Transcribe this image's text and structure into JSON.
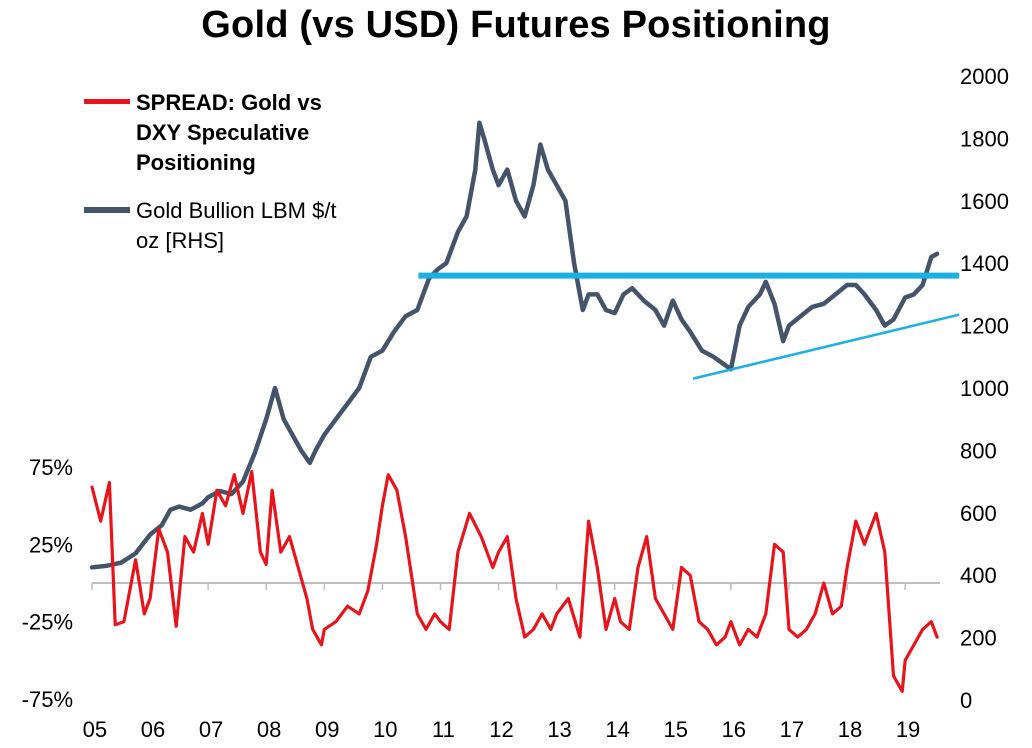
{
  "chart_data": {
    "type": "line",
    "title": "Gold (vs USD) Futures Positioning",
    "x_tick_labels": [
      "05",
      "06",
      "07",
      "08",
      "09",
      "10",
      "11",
      "12",
      "13",
      "14",
      "15",
      "16",
      "17",
      "18",
      "19"
    ],
    "left_axis": {
      "ticks": [
        75,
        25,
        -25,
        -75
      ],
      "tick_labels": [
        "75%",
        "25%",
        "-25%",
        "-75%"
      ],
      "ylim": [
        -75,
        75
      ]
    },
    "right_axis": {
      "ticks": [
        0,
        200,
        400,
        600,
        800,
        1000,
        1200,
        1400,
        1600,
        1800,
        2000
      ],
      "tick_labels": [
        "0",
        "200",
        "400",
        "600",
        "800",
        "1000",
        "1200",
        "1400",
        "1600",
        "1800",
        "2000"
      ],
      "ylim": [
        0,
        2000
      ]
    },
    "series": [
      {
        "name": "SPREAD: Gold vs DXY Speculative Positioning",
        "axis": "left",
        "color": "#e8141b",
        "x": [
          2005.0,
          2005.15,
          2005.3,
          2005.4,
          2005.55,
          2005.75,
          2005.9,
          2006.0,
          2006.15,
          2006.3,
          2006.45,
          2006.6,
          2006.75,
          2006.9,
          2007.0,
          2007.15,
          2007.3,
          2007.45,
          2007.6,
          2007.75,
          2007.9,
          2008.0,
          2008.1,
          2008.25,
          2008.4,
          2008.55,
          2008.7,
          2008.8,
          2008.95,
          2009.0,
          2009.2,
          2009.4,
          2009.6,
          2009.75,
          2009.9,
          2010.0,
          2010.1,
          2010.25,
          2010.4,
          2010.6,
          2010.75,
          2010.9,
          2011.0,
          2011.15,
          2011.3,
          2011.5,
          2011.7,
          2011.9,
          2012.0,
          2012.15,
          2012.3,
          2012.45,
          2012.6,
          2012.75,
          2012.9,
          2013.0,
          2013.2,
          2013.4,
          2013.55,
          2013.7,
          2013.85,
          2014.0,
          2014.1,
          2014.25,
          2014.4,
          2014.55,
          2014.7,
          2014.85,
          2015.0,
          2015.15,
          2015.3,
          2015.45,
          2015.6,
          2015.75,
          2015.9,
          2016.0,
          2016.15,
          2016.3,
          2016.45,
          2016.6,
          2016.75,
          2016.9,
          2017.0,
          2017.15,
          2017.3,
          2017.45,
          2017.6,
          2017.75,
          2017.9,
          2018.0,
          2018.15,
          2018.3,
          2018.5,
          2018.65,
          2018.8,
          2018.95,
          2019.0,
          2019.15,
          2019.3,
          2019.45,
          2019.55
        ],
        "y": [
          62,
          40,
          65,
          -27,
          -25,
          15,
          -20,
          -10,
          35,
          20,
          -28,
          30,
          20,
          45,
          25,
          60,
          50,
          70,
          45,
          72,
          20,
          12,
          60,
          20,
          30,
          10,
          -10,
          -30,
          -40,
          -30,
          -25,
          -15,
          -20,
          -5,
          25,
          50,
          70,
          60,
          30,
          -20,
          -30,
          -20,
          -25,
          -30,
          20,
          45,
          30,
          10,
          20,
          30,
          -10,
          -35,
          -30,
          -20,
          -30,
          -20,
          -10,
          -35,
          40,
          10,
          -30,
          -10,
          -25,
          -30,
          10,
          30,
          -10,
          -20,
          -30,
          10,
          5,
          -25,
          -30,
          -40,
          -35,
          -25,
          -40,
          -30,
          -35,
          -20,
          25,
          20,
          -30,
          -35,
          -30,
          -20,
          0,
          -20,
          -15,
          10,
          40,
          25,
          45,
          20,
          -60,
          -70,
          -50,
          -40,
          -30,
          -25,
          -35
        ]
      },
      {
        "name": "Gold Bullion LBM $/t oz [RHS]",
        "axis": "right",
        "color": "#44546a",
        "x": [
          2005.0,
          2005.25,
          2005.5,
          2005.75,
          2006.0,
          2006.2,
          2006.35,
          2006.5,
          2006.7,
          2006.9,
          2007.0,
          2007.2,
          2007.4,
          2007.6,
          2007.8,
          2008.0,
          2008.15,
          2008.3,
          2008.45,
          2008.6,
          2008.75,
          2008.85,
          2009.0,
          2009.2,
          2009.4,
          2009.6,
          2009.8,
          2010.0,
          2010.2,
          2010.4,
          2010.6,
          2010.8,
          2010.95,
          2011.1,
          2011.3,
          2011.45,
          2011.6,
          2011.67,
          2011.75,
          2011.9,
          2012.0,
          2012.15,
          2012.3,
          2012.45,
          2012.6,
          2012.72,
          2012.85,
          2013.0,
          2013.15,
          2013.3,
          2013.45,
          2013.55,
          2013.7,
          2013.85,
          2014.0,
          2014.15,
          2014.3,
          2014.5,
          2014.7,
          2014.85,
          2015.0,
          2015.15,
          2015.3,
          2015.5,
          2015.7,
          2015.85,
          2016.0,
          2016.15,
          2016.3,
          2016.5,
          2016.6,
          2016.75,
          2016.9,
          2017.0,
          2017.2,
          2017.4,
          2017.6,
          2017.8,
          2018.0,
          2018.15,
          2018.3,
          2018.5,
          2018.65,
          2018.8,
          2019.0,
          2019.15,
          2019.3,
          2019.45,
          2019.55
        ],
        "y": [
          425,
          430,
          440,
          470,
          530,
          560,
          610,
          620,
          610,
          630,
          650,
          670,
          660,
          700,
          790,
          900,
          1000,
          900,
          850,
          800,
          760,
          800,
          850,
          900,
          950,
          1000,
          1100,
          1120,
          1180,
          1230,
          1250,
          1350,
          1380,
          1400,
          1500,
          1550,
          1700,
          1850,
          1800,
          1700,
          1650,
          1700,
          1600,
          1550,
          1650,
          1780,
          1700,
          1650,
          1600,
          1400,
          1250,
          1300,
          1300,
          1250,
          1240,
          1300,
          1320,
          1280,
          1250,
          1200,
          1280,
          1220,
          1180,
          1120,
          1100,
          1080,
          1060,
          1200,
          1260,
          1300,
          1340,
          1270,
          1150,
          1200,
          1230,
          1260,
          1270,
          1300,
          1330,
          1330,
          1300,
          1250,
          1200,
          1220,
          1290,
          1300,
          1330,
          1420,
          1430
        ]
      }
    ],
    "annotations": [
      {
        "type": "horizontal-line",
        "y": 1360,
        "x_start": 2010.62,
        "x_end": 2019.55,
        "color": "#1ab0e6"
      },
      {
        "type": "trend-line",
        "x_start": 2015.35,
        "y_start": 1030,
        "x_end": 2019.55,
        "y_end": 1235,
        "color": "#1ab0e6"
      }
    ],
    "legend": [
      {
        "label": "SPREAD: Gold vs DXY Speculative Positioning",
        "color": "#e8141b",
        "bold": true
      },
      {
        "label": "Gold Bullion LBM $/t oz [RHS]",
        "color": "#44546a",
        "bold": false
      }
    ],
    "legend_position": "top-left",
    "grid": false
  }
}
